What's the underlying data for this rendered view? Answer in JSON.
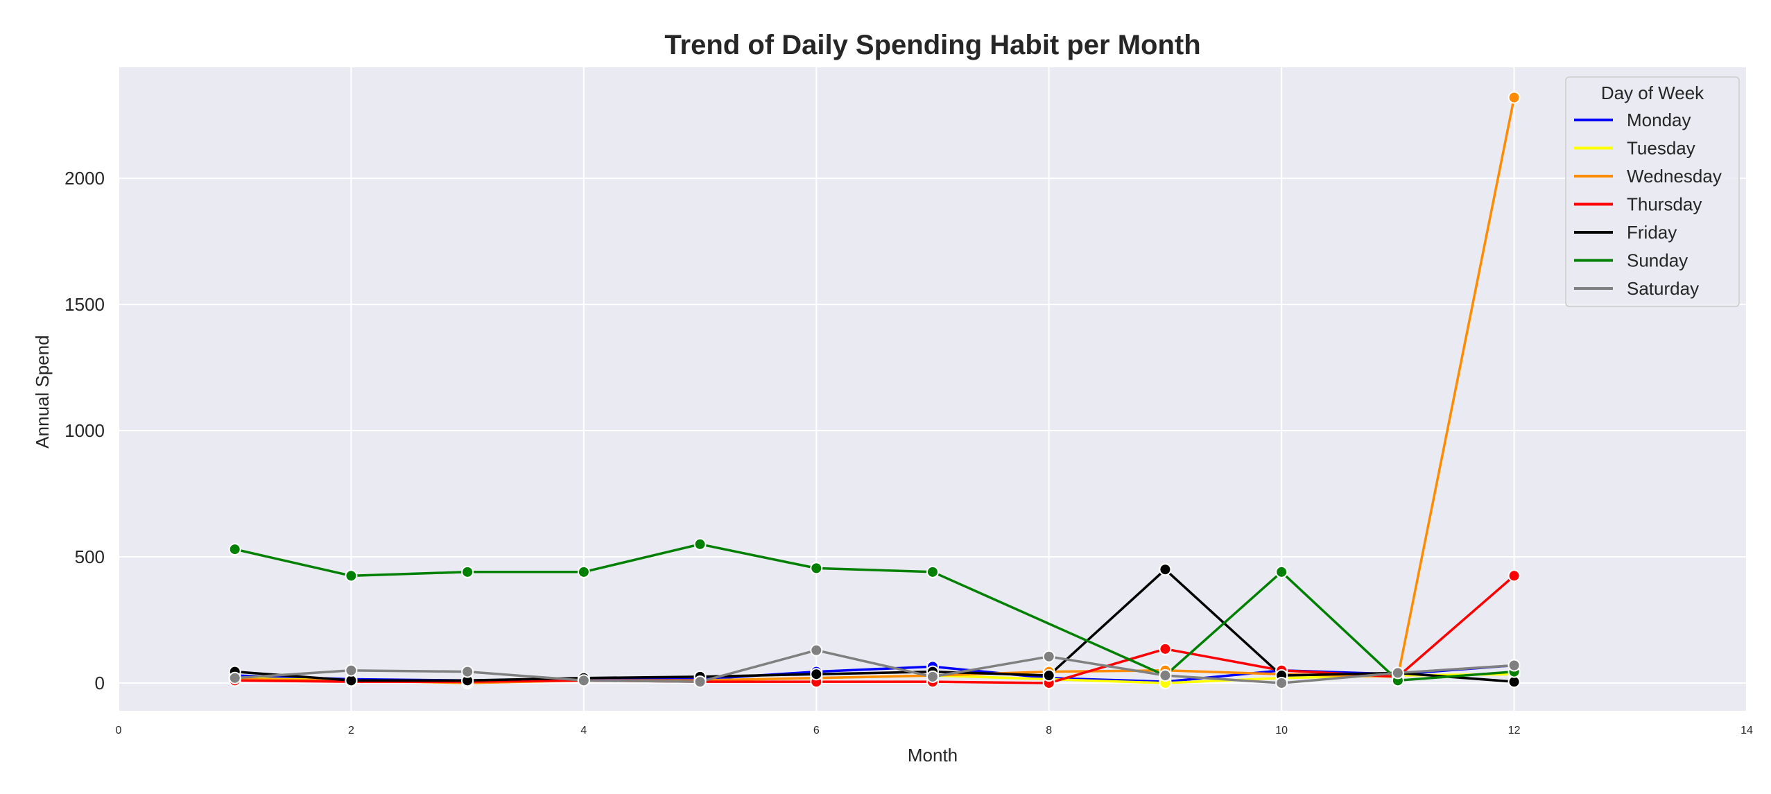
{
  "chart_data": {
    "type": "line",
    "title": "Trend of Daily Spending Habit per Month",
    "xlabel": "Month",
    "ylabel": "Annual Spend",
    "xlim": [
      0,
      14
    ],
    "ylim": [
      -110,
      2440
    ],
    "xticks": [
      0,
      2,
      4,
      6,
      8,
      10,
      12,
      14
    ],
    "yticks": [
      0,
      500,
      1000,
      1500,
      2000
    ],
    "grid": true,
    "legend": {
      "title": "Day of Week",
      "position": "top-right"
    },
    "colors": {
      "plot_background": "#eaeaf2",
      "grid": "#ffffff"
    },
    "series": [
      {
        "name": "Monday",
        "color": "#0000ff",
        "x": [
          1,
          2,
          3,
          4,
          5,
          6,
          7,
          8,
          9,
          10,
          11,
          12
        ],
        "y": [
          30,
          15,
          10,
          15,
          15,
          45,
          65,
          20,
          5,
          50,
          35,
          70
        ]
      },
      {
        "name": "Tuesday",
        "color": "#ffff00",
        "x": [
          1,
          2,
          3,
          4,
          5,
          6,
          7,
          8,
          9,
          10,
          11,
          12
        ],
        "y": [
          20,
          10,
          5,
          10,
          10,
          20,
          30,
          15,
          0,
          20,
          30,
          35
        ]
      },
      {
        "name": "Wednesday",
        "color": "#ff8c00",
        "x": [
          1,
          2,
          3,
          4,
          5,
          6,
          7,
          8,
          9,
          10,
          11,
          12
        ],
        "y": [
          15,
          10,
          0,
          10,
          10,
          20,
          30,
          45,
          50,
          35,
          25,
          2320
        ]
      },
      {
        "name": "Thursday",
        "color": "#ff0000",
        "x": [
          1,
          2,
          3,
          4,
          5,
          6,
          7,
          8,
          9,
          10,
          11,
          12
        ],
        "y": [
          10,
          5,
          5,
          10,
          5,
          5,
          5,
          0,
          135,
          50,
          25,
          425
        ]
      },
      {
        "name": "Friday",
        "color": "#000000",
        "x": [
          1,
          2,
          3,
          4,
          5,
          6,
          7,
          8,
          9,
          10,
          11,
          12
        ],
        "y": [
          45,
          10,
          10,
          20,
          25,
          35,
          45,
          30,
          450,
          30,
          40,
          5
        ]
      },
      {
        "name": "Sunday",
        "color": "#008000",
        "x": [
          1,
          2,
          3,
          4,
          5,
          6,
          7,
          8,
          9,
          10,
          11,
          12
        ],
        "y": [
          530,
          425,
          440,
          440,
          550,
          455,
          440,
          null,
          30,
          440,
          10,
          45
        ]
      },
      {
        "name": "Saturday",
        "color": "#808080",
        "x": [
          1,
          2,
          3,
          4,
          5,
          6,
          7,
          8,
          9,
          10,
          11,
          12
        ],
        "y": [
          20,
          50,
          45,
          10,
          5,
          130,
          25,
          105,
          30,
          0,
          40,
          70
        ]
      }
    ]
  }
}
